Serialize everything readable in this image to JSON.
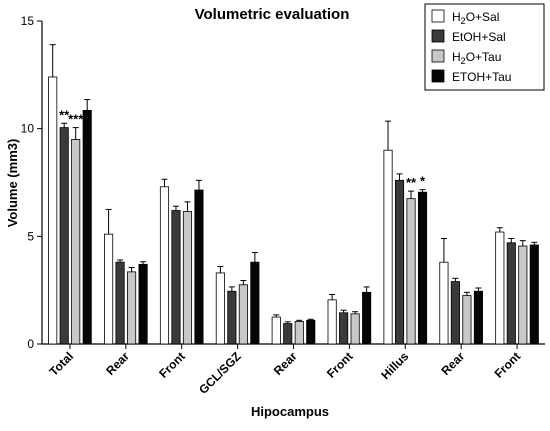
{
  "chart_data": {
    "type": "bar",
    "title": "Volumetric evaluation",
    "xlabel": "Hipocampus",
    "ylabel": "Volume (mm3)",
    "ylim": [
      0,
      15
    ],
    "yticks": [
      "0",
      "5",
      "10",
      "15"
    ],
    "ytick_values": [
      0,
      5,
      10,
      15
    ],
    "grid": false,
    "legend_position": "top-right",
    "categories": [
      "Total",
      "Rear",
      "Front",
      "GCL/SGZ",
      "Rear",
      "Front",
      "Hillus",
      "Rear",
      "Front"
    ],
    "series": [
      {
        "name_main": "H",
        "name_sub": "2",
        "name_rest": "O+Sal",
        "color": "#ffffff",
        "values": [
          12.4,
          5.1,
          7.3,
          3.3,
          1.25,
          2.05,
          9.0,
          3.8,
          5.2
        ],
        "errors": [
          1.5,
          1.15,
          0.35,
          0.3,
          0.1,
          0.25,
          1.35,
          1.1,
          0.2
        ]
      },
      {
        "name_main": "EtOH+Sal",
        "name_sub": "",
        "name_rest": "",
        "color": "#3a3a3a",
        "values": [
          10.05,
          3.8,
          6.2,
          2.45,
          0.95,
          1.45,
          7.6,
          2.9,
          4.7
        ],
        "errors": [
          0.2,
          0.1,
          0.2,
          0.2,
          0.08,
          0.12,
          0.3,
          0.15,
          0.2
        ]
      },
      {
        "name_main": "H",
        "name_sub": "2",
        "name_rest": "O+Tau",
        "color": "#c8c8c8",
        "values": [
          9.5,
          3.35,
          6.15,
          2.75,
          1.05,
          1.4,
          6.75,
          2.25,
          4.55
        ],
        "errors": [
          0.55,
          0.2,
          0.45,
          0.2,
          0.05,
          0.1,
          0.35,
          0.15,
          0.25
        ]
      },
      {
        "name_main": "ETOH+Tau",
        "name_sub": "",
        "name_rest": "",
        "color": "#050505",
        "values": [
          10.85,
          3.7,
          7.15,
          3.8,
          1.1,
          2.4,
          7.05,
          2.45,
          4.6
        ],
        "errors": [
          0.5,
          0.12,
          0.45,
          0.45,
          0.05,
          0.25,
          0.12,
          0.15,
          0.12
        ]
      }
    ],
    "annotations": [
      {
        "text": "**",
        "category_index": 0,
        "series_index": 1
      },
      {
        "text": "***",
        "category_index": 0,
        "series_index": 2
      },
      {
        "text": "**",
        "category_index": 6,
        "series_index": 2
      },
      {
        "text": "*",
        "category_index": 6,
        "series_index": 3
      }
    ]
  }
}
